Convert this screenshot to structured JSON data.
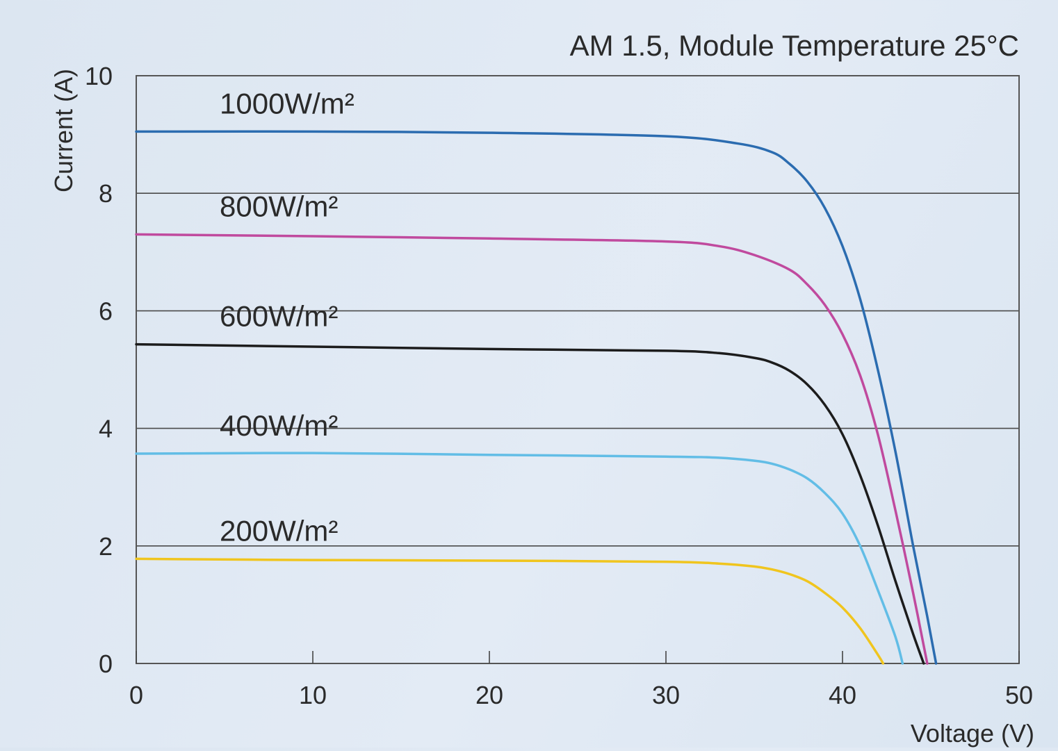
{
  "chart_data": {
    "type": "line",
    "title": "AM 1.5, Module Temperature 25°C",
    "xlabel": "Voltage (V)",
    "ylabel": "Current (A)",
    "xlim": [
      0,
      50
    ],
    "ylim": [
      0,
      10
    ],
    "xticks": [
      0,
      10,
      20,
      30,
      40,
      50
    ],
    "yticks": [
      0,
      2,
      4,
      6,
      8,
      10
    ],
    "grid": {
      "horizontal": true,
      "vertical": false
    },
    "series": [
      {
        "name": "1000W/m²",
        "color": "#2b6cb0",
        "x": [
          0,
          10,
          20,
          30,
          34,
          36,
          37,
          38,
          39,
          40,
          41,
          42,
          43,
          44,
          44.8,
          45.3
        ],
        "y": [
          9.05,
          9.05,
          9.03,
          8.97,
          8.85,
          8.7,
          8.5,
          8.2,
          7.75,
          7.1,
          6.2,
          5.0,
          3.6,
          2.0,
          0.8,
          0
        ]
      },
      {
        "name": "800W/m²",
        "color": "#c04a9e",
        "x": [
          0,
          10,
          20,
          30,
          33,
          35,
          37,
          38,
          39,
          40,
          41,
          42,
          43,
          44,
          44.8
        ],
        "y": [
          7.3,
          7.27,
          7.23,
          7.18,
          7.1,
          6.95,
          6.7,
          6.45,
          6.1,
          5.6,
          4.9,
          3.9,
          2.6,
          1.2,
          0
        ]
      },
      {
        "name": "600W/m²",
        "color": "#1c1c1c",
        "x": [
          0,
          10,
          20,
          30,
          33,
          35,
          36,
          37,
          38,
          39,
          40,
          41,
          42,
          43,
          44,
          44.6
        ],
        "y": [
          5.43,
          5.39,
          5.35,
          5.32,
          5.28,
          5.2,
          5.12,
          4.98,
          4.75,
          4.4,
          3.9,
          3.2,
          2.35,
          1.4,
          0.5,
          0
        ]
      },
      {
        "name": "400W/m²",
        "color": "#62bde6",
        "x": [
          0,
          10,
          20,
          30,
          33,
          35,
          36,
          37,
          38,
          39,
          40,
          41,
          42,
          43,
          43.4
        ],
        "y": [
          3.57,
          3.58,
          3.55,
          3.52,
          3.5,
          3.45,
          3.4,
          3.3,
          3.15,
          2.9,
          2.55,
          2.0,
          1.25,
          0.45,
          0
        ]
      },
      {
        "name": "200W/m²",
        "color": "#f0c51e",
        "x": [
          0,
          10,
          20,
          30,
          33,
          35,
          36,
          37,
          38,
          39,
          40,
          41,
          42,
          42.3
        ],
        "y": [
          1.78,
          1.76,
          1.75,
          1.73,
          1.7,
          1.65,
          1.6,
          1.52,
          1.4,
          1.2,
          0.95,
          0.6,
          0.15,
          0
        ]
      }
    ]
  }
}
